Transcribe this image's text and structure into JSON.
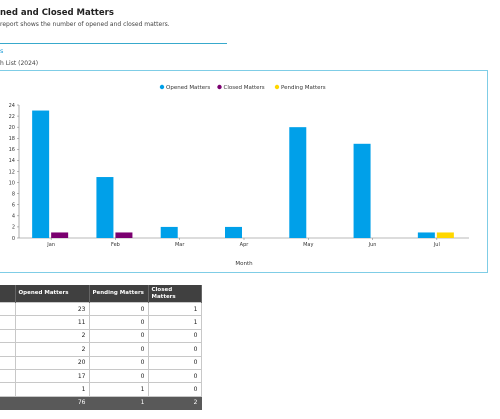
{
  "header": {
    "title": "ned and Closed Matters",
    "description": "report shows the number of opened and closed matters."
  },
  "section": {
    "title": "s",
    "list_name": "h List (2024)"
  },
  "chart_data": {
    "type": "bar",
    "categories": [
      "Jan",
      "Feb",
      "Mar",
      "Apr",
      "May",
      "Jun",
      "Jul"
    ],
    "series": [
      {
        "name": "Opened Matters",
        "color": "#00a0e9",
        "values": [
          23,
          11,
          2,
          2,
          20,
          17,
          1
        ]
      },
      {
        "name": "Closed Matters",
        "color": "#7b0070",
        "values": [
          1,
          1,
          0,
          0,
          0,
          0,
          0
        ]
      },
      {
        "name": "Pending Matters",
        "color": "#ffd700",
        "values": [
          0,
          0,
          0,
          0,
          0,
          0,
          1
        ]
      }
    ],
    "ylim": [
      0,
      24
    ],
    "yticks": [
      0,
      2,
      4,
      6,
      8,
      10,
      12,
      14,
      16,
      18,
      20,
      22,
      24
    ],
    "xlabel": "Month",
    "ylabel": "",
    "legend_position": "top-center",
    "grid": false
  },
  "table": {
    "columns": [
      {
        "label": "h",
        "sort_icon": "sort-down-icon"
      },
      {
        "label": "Opened Matters",
        "sort_icon": "sort-down-icon"
      },
      {
        "label": "Pending Matters",
        "sort_icon": "sort-down-icon"
      },
      {
        "label": "Closed Matters",
        "sort_icon": "sort-down-icon"
      }
    ],
    "rows": [
      {
        "opened": "23",
        "pending": "0",
        "closed": "1"
      },
      {
        "opened": "11",
        "pending": "0",
        "closed": "1"
      },
      {
        "opened": "2",
        "pending": "0",
        "closed": "0"
      },
      {
        "opened": "2",
        "pending": "0",
        "closed": "0"
      },
      {
        "opened": "20",
        "pending": "0",
        "closed": "0"
      },
      {
        "opened": "17",
        "pending": "0",
        "closed": "0"
      },
      {
        "opened": "1",
        "pending": "1",
        "closed": "0"
      }
    ],
    "total": {
      "opened": "76",
      "pending": "1",
      "closed": "2"
    }
  }
}
